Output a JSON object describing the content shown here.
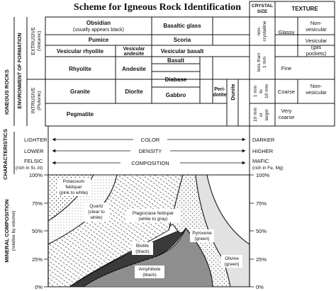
{
  "title": "Scheme for Igneous Rock Identification",
  "left_labels": {
    "igneous_rocks": "IGNEOUS ROCKS",
    "environment": "ENVIRONMENT OF FORMATION",
    "extrusive": "EXTRUSIVE",
    "volcanic": "(Volcanic)",
    "intrusive": "INTRUSIVE",
    "plutonic": "(Plutonic)",
    "characteristics": "CHARACTERISTICS",
    "mineral_composition": "MINERAL COMPOSITION",
    "by_volume": "(relative by volume)"
  },
  "headers": {
    "crystal_size_1": "CRYSTAL",
    "crystal_size_2": "SIZE",
    "texture": "TEXTURE"
  },
  "rocks": {
    "obsidian": "Obsidian",
    "obsidian_note": "(usually appears black)",
    "basaltic_glass": "Basaltic glass",
    "pumice": "Pumice",
    "scoria": "Scoria",
    "vesicular_rhyolite": "Vesicular rhyolite",
    "vesicular_andesite_1": "Vesicular",
    "vesicular_andesite_2": "andesite",
    "vesicular_basalt": "Vesicular basalt",
    "rhyolite": "Rhyolite",
    "andesite": "Andesite",
    "basalt": "Basalt",
    "diabase": "Diabase",
    "granite": "Granite",
    "diorite": "Diorite",
    "gabbro": "Gabbro",
    "peridotite_1": "Peri-",
    "peridotite_2": "dotite",
    "dunite": "Dunite",
    "pegmatite": "Pegmatite"
  },
  "crystal_size": {
    "non_crystalline_1": "non-",
    "non_crystalline_2": "crystalline",
    "less_than_1mm_1": "less than",
    "less_than_1mm_2": "1 mm",
    "mm_range_1": "1 mm",
    "mm_range_2": "to",
    "mm_range_3": "10 mm",
    "large_1": "10 mm",
    "large_2": "or",
    "large_3": "larger"
  },
  "texture": {
    "glassy": "Glassy",
    "non_vesicular_1": "Non-",
    "non_vesicular_2": "vesicular",
    "vesicular_1": "Vesicular",
    "vesicular_2": "(gas",
    "vesicular_3": "pockets)",
    "fine": "Fine",
    "coarse": "Coarse",
    "very_coarse_1": "Very",
    "very_coarse_2": "coarse"
  },
  "characteristics": {
    "lighter": "LIGHTER",
    "color": "COLOR",
    "darker": "DARKER",
    "lower": "LOWER",
    "density": "DENSITY",
    "higher": "HIGHER",
    "felsic": "FELSIC",
    "felsic_note": "(rich in Si, Al)",
    "composition": "COMPOSITION",
    "mafic": "MAFIC",
    "mafic_note": "(rich in Fe, Mg)"
  },
  "percent_ticks": [
    "100%",
    "75%",
    "50%",
    "25%",
    "0%"
  ],
  "minerals": {
    "potassium_1": "Potassium",
    "potassium_2": "feldspar",
    "potassium_3": "(pink to white)",
    "quartz_1": "Quartz",
    "quartz_2": "(clear to",
    "quartz_3": "white)",
    "plagioclase_1": "Plagioclase feldspar",
    "plagioclase_2": "(white to gray)",
    "biotite_1": "Biotite",
    "biotite_2": "(black)",
    "pyroxene_1": "Pyroxene",
    "pyroxene_2": "(green)",
    "amphibole_1": "Amphibole",
    "amphibole_2": "(black)",
    "olivine_1": "Olivine",
    "olivine_2": "(green)"
  }
}
